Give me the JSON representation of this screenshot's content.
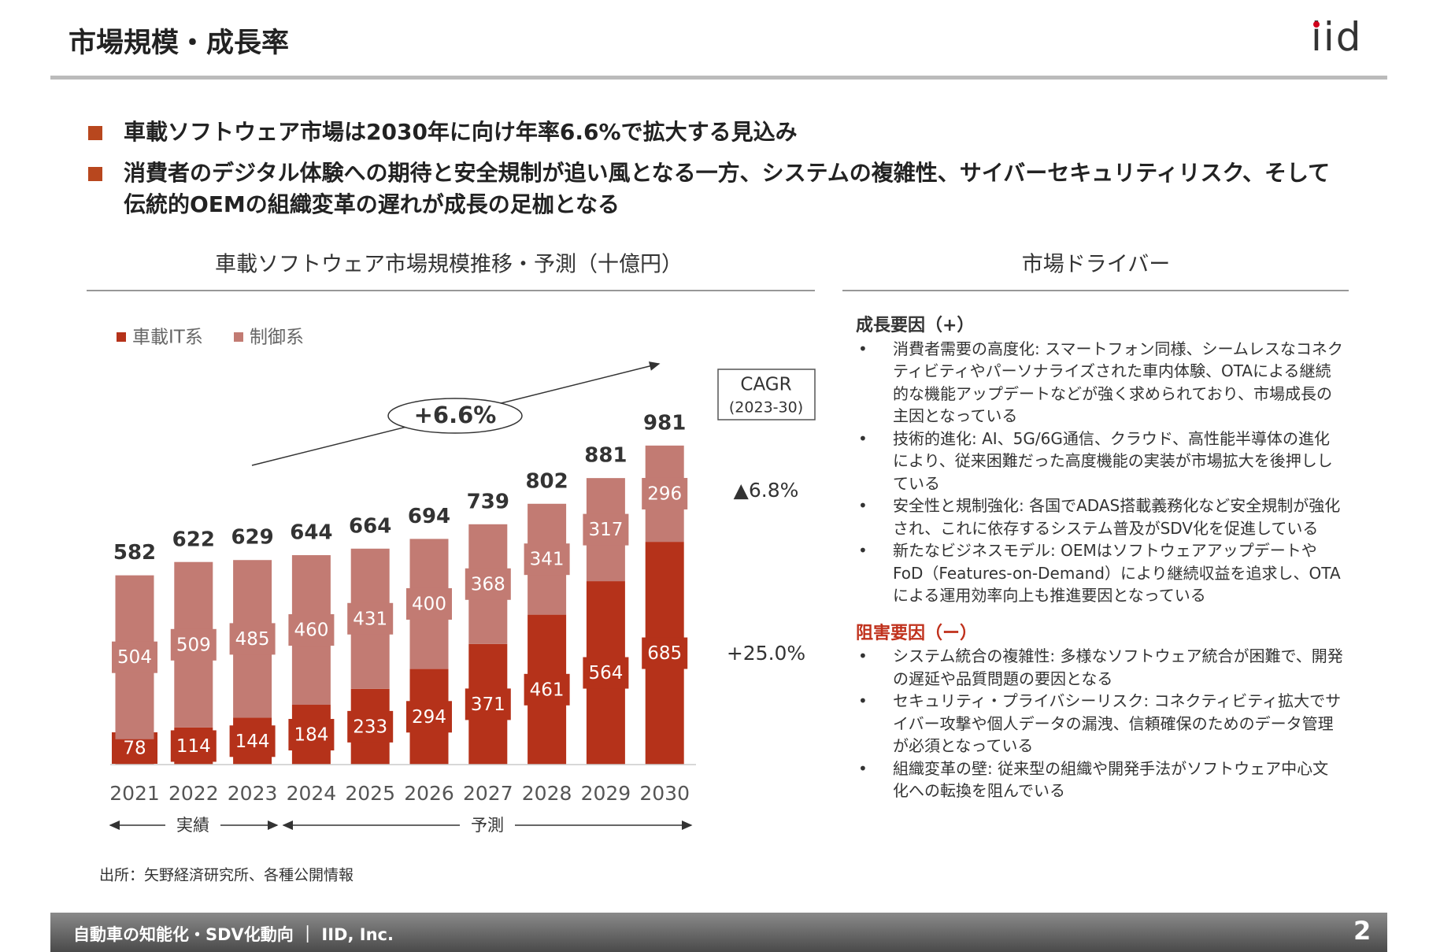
{
  "header": {
    "title": "市場規模・成長率",
    "logo": "iid"
  },
  "summary": [
    "車載ソフトウェア市場は2030年に向け年率6.6%で拡大する見込み",
    "消費者のデジタル体験への期待と安全規制が追い風となる一方、システムの複雑性、サイバーセキュリティリスク、そして伝統的OEMの組織変革の遅れが成長の足枷となる"
  ],
  "chart_data": {
    "type": "bar",
    "stacked": true,
    "title": "車載ソフトウェア市場規模推移・予測（十億円）",
    "categories": [
      "2021",
      "2022",
      "2023",
      "2024",
      "2025",
      "2026",
      "2027",
      "2028",
      "2029",
      "2030"
    ],
    "series": [
      {
        "name": "車載IT系",
        "color": "#b5321a",
        "values": [
          78,
          114,
          144,
          184,
          233,
          294,
          371,
          461,
          564,
          685
        ],
        "cagr": "+25.0%"
      },
      {
        "name": "制御系",
        "color": "#c27b73",
        "values": [
          504,
          509,
          485,
          460,
          431,
          400,
          368,
          341,
          317,
          296
        ],
        "cagr": "▲6.8%"
      }
    ],
    "totals": [
      582,
      622,
      629,
      644,
      664,
      694,
      739,
      802,
      881,
      981
    ],
    "cagr_label": "CAGR",
    "cagr_period": "(2023-30)",
    "overall_growth": "+6.6%",
    "periods": [
      "実績",
      "予測"
    ],
    "source": "出所：矢野経済研究所、各種公開情報"
  },
  "drivers": {
    "title": "市場ドライバー",
    "growth": {
      "heading": "成長要因（+）",
      "items": [
        "消費者需要の高度化: スマートフォン同様、シームレスなコネクティビティやパーソナライズされた車内体験、OTAによる継続的な機能アップデートなどが強く求められており、市場成長の主因となっている",
        "技術的進化: AI、5G/6G通信、クラウド、高性能半導体の進化により、従来困難だった高度機能の実装が市場拡大を後押ししている",
        "安全性と規制強化: 各国でADAS搭載義務化など安全規制が強化され、これに依存するシステム普及がSDV化を促進している",
        "新たなビジネスモデル: OEMはソフトウェアアップデートやFoD（Features-on-Demand）により継続収益を追求し、OTAによる運用効率向上も推進要因となっている"
      ]
    },
    "barriers": {
      "heading": "阻害要因（ー）",
      "items": [
        "システム統合の複雑性: 多様なソフトウェア統合が困難で、開発の遅延や品質問題の要因となる",
        "セキュリティ・プライバシーリスク: コネクティビティ拡大でサイバー攻撃や個人データの漏洩、信頼確保のためのデータ管理が必須となっている",
        "組織変革の壁: 従来型の組織や開発手法がソフトウェア中心文化への転換を阻んでいる"
      ]
    }
  },
  "footer": {
    "text": "自動車の知能化・SDV化動向 ｜ IID, Inc.",
    "page": "2"
  }
}
